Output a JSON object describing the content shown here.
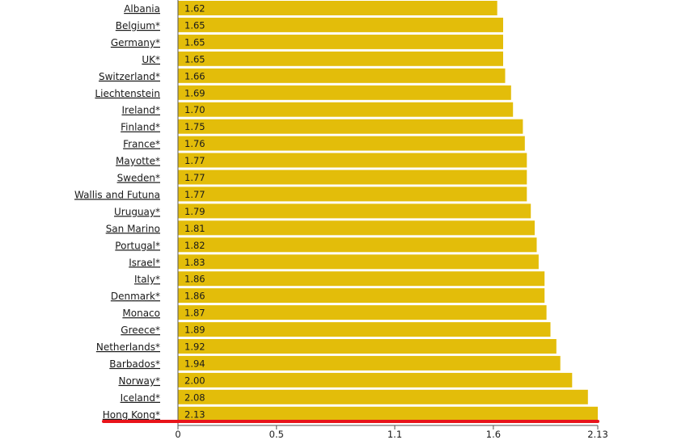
{
  "chart_data": {
    "type": "bar",
    "orientation": "horizontal",
    "categories": [
      "Albania ",
      "Belgium*",
      "Germany*",
      "UK*",
      "Switzerland*",
      "Liechtenstein ",
      "Ireland*",
      "Finland*",
      "France*",
      "Mayotte*",
      "Sweden*",
      "Wallis and Futuna",
      "Uruguay*",
      "San Marino ",
      "Portugal*",
      "Israel*",
      "Italy*",
      "Denmark*",
      "Monaco ",
      "Greece*",
      "Netherlands*",
      "Barbados*",
      "Norway*",
      "Iceland*",
      "Hong Kong*"
    ],
    "values": [
      1.62,
      1.65,
      1.65,
      1.65,
      1.66,
      1.69,
      1.7,
      1.75,
      1.76,
      1.77,
      1.77,
      1.77,
      1.79,
      1.81,
      1.82,
      1.83,
      1.86,
      1.86,
      1.87,
      1.89,
      1.92,
      1.94,
      2.0,
      2.08,
      2.13
    ],
    "value_labels": [
      "1.62",
      "1.65",
      "1.65",
      "1.65",
      "1.66",
      "1.69",
      "1.70",
      "1.75",
      "1.76",
      "1.77",
      "1.77",
      "1.77",
      "1.79",
      "1.81",
      "1.82",
      "1.83",
      "1.86",
      "1.86",
      "1.87",
      "1.89",
      "1.92",
      "1.94",
      "2.00",
      "2.08",
      "2.13"
    ],
    "x_ticks": [
      "0",
      "0.5",
      "1.1",
      "1.6",
      "2.13"
    ],
    "x_tick_values": [
      0,
      0.5,
      1.1,
      1.6,
      2.13
    ],
    "xlim": [
      0,
      2.13
    ],
    "highlight_category": "Hong Kong*",
    "colors": {
      "bar": "#e3bd0a",
      "highlight_line": "#e8141a",
      "axis": "#555555"
    },
    "grid": false,
    "legend": "none",
    "title": "",
    "xlabel": "",
    "ylabel": ""
  }
}
